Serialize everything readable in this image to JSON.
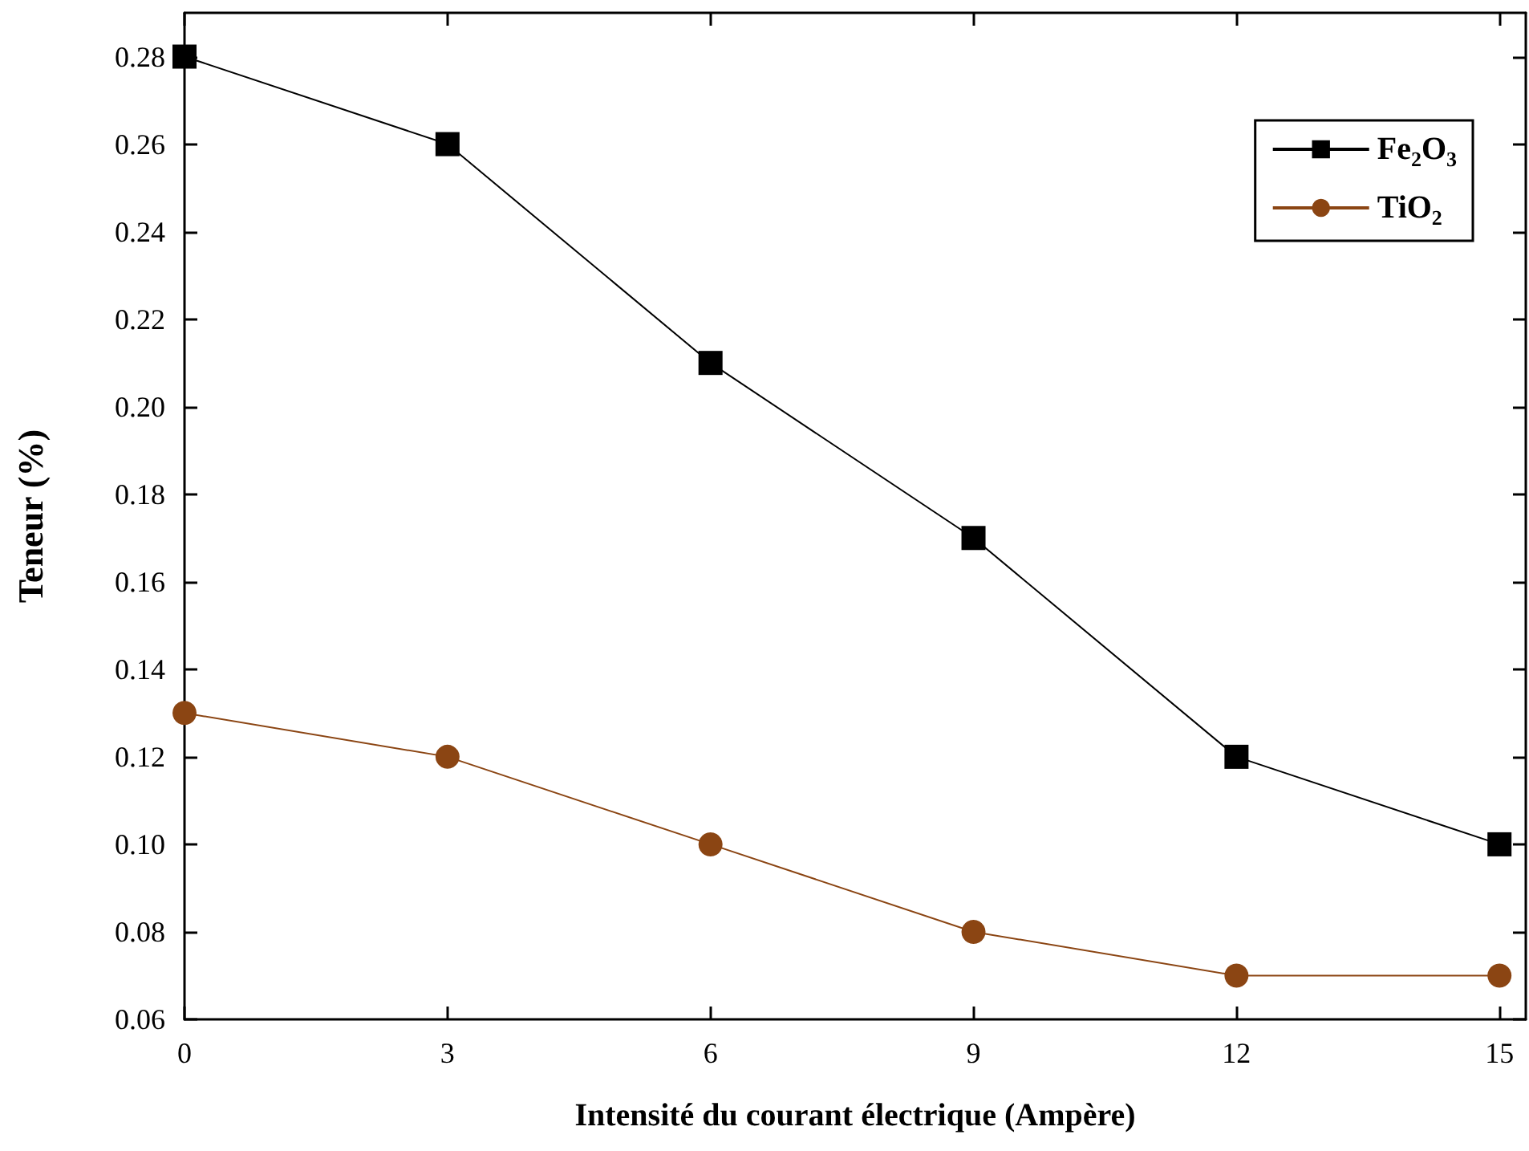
{
  "chart_data": {
    "type": "line",
    "xlabel": "Intensité du courant électrique (Ampère)",
    "ylabel": "Teneur (%)",
    "x": [
      0,
      3,
      6,
      9,
      12,
      15
    ],
    "series": [
      {
        "name": "Fe$_{2}$O$_{3}$",
        "color": "#000000",
        "marker": "square",
        "values": [
          0.28,
          0.26,
          0.21,
          0.17,
          0.12,
          0.1
        ]
      },
      {
        "name": "TiO$_{2}$",
        "color": "#8b4513",
        "marker": "circle",
        "values": [
          0.13,
          0.12,
          0.1,
          0.08,
          0.07,
          0.07
        ]
      }
    ],
    "xlim": [
      0,
      15.3
    ],
    "xticks": [
      0,
      3,
      6,
      9,
      12,
      15
    ],
    "ylim": [
      0.06,
      0.29
    ],
    "yticks": [
      0.06,
      0.08,
      {
        "value": 0.1,
        "label": "0.10"
      },
      0.12,
      0.14,
      0.16,
      0.18,
      {
        "value": 0.2,
        "label": "0.20"
      },
      0.22,
      0.24,
      0.26,
      0.28
    ],
    "grid": false,
    "legend": "top right",
    "line_style": "solid"
  }
}
